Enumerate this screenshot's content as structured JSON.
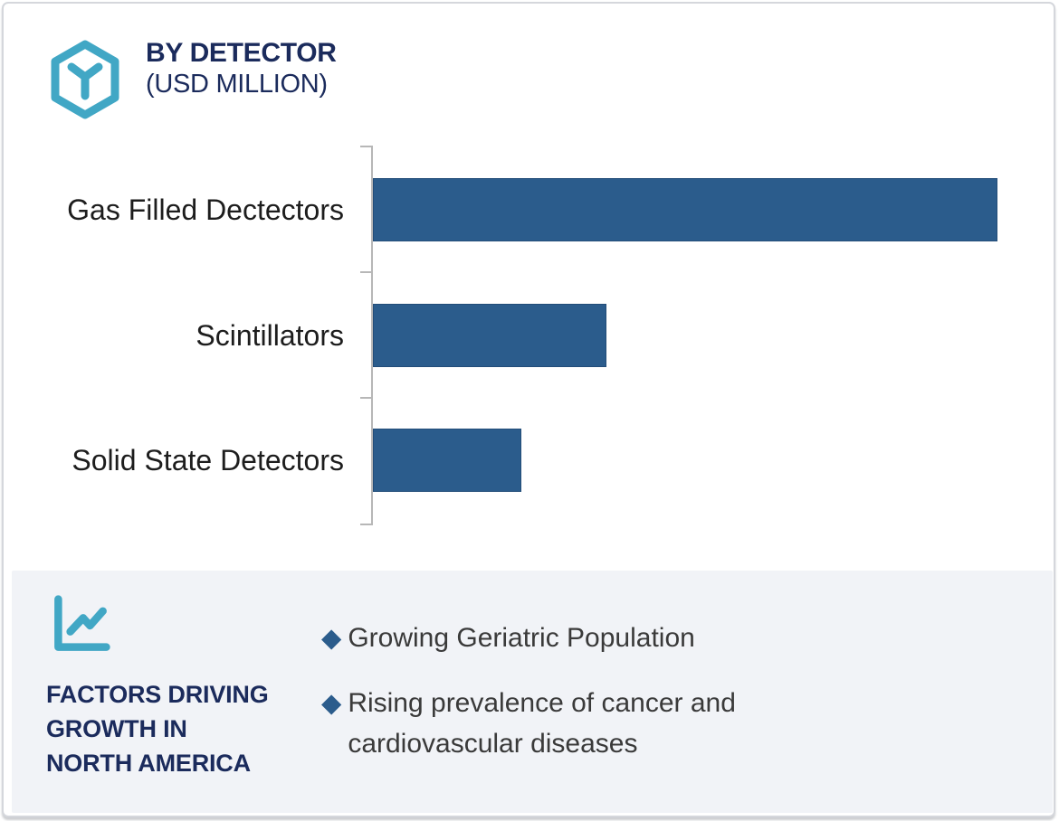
{
  "header": {
    "title_line1": "BY DETECTOR",
    "title_line2": "(USD MILLION)",
    "icon": "hexagon-y-icon",
    "icon_color": "#41A7C5",
    "title_color": "#1B2B5C"
  },
  "chart_data": {
    "type": "bar",
    "orientation": "horizontal",
    "title": "BY DETECTOR (USD MILLION)",
    "value_unit": "USD Million",
    "categories": [
      "Gas Filled Dectectors",
      "Scintillators",
      "Solid State Detectors"
    ],
    "values": [
      100,
      37.4,
      23.7
    ],
    "values_note": "No numeric axis or data labels are shown in the image; values are relative bar lengths with the longest bar = 100",
    "xlim": [
      0,
      109
    ],
    "bar_color": "#2B5C8C",
    "axis_color": "#B7B7B7",
    "tick_count": 4,
    "gridlines": false,
    "value_labels": false,
    "legend": false,
    "label_color": "#1D1D1D"
  },
  "factors": {
    "icon": "line-chart-icon",
    "icon_color": "#41A7C5",
    "panel_bg": "#F1F3F7",
    "title_lines": [
      "FACTORS DRIVING",
      "GROWTH IN",
      "NORTH AMERICA"
    ],
    "title_color": "#1B2B5C",
    "bullet_marker": "◆",
    "bullet_color": "#2B5C8C",
    "bullets": [
      {
        "text": "Growing Geriatric Population"
      },
      {
        "text": "Rising prevalence of cancer and cardiovascular diseases"
      }
    ]
  }
}
